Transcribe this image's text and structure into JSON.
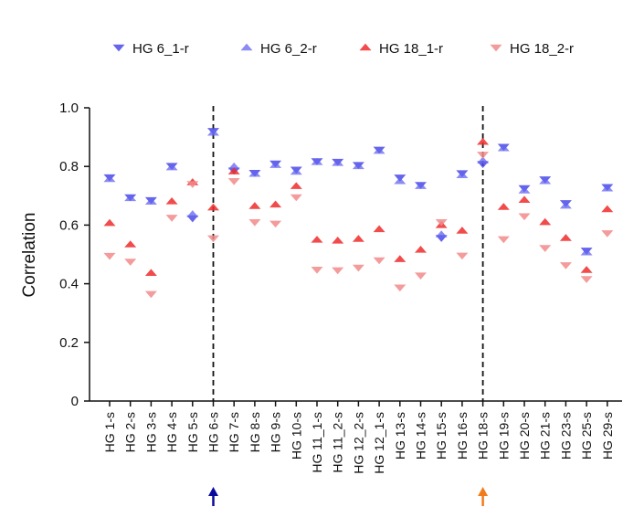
{
  "chart_data": {
    "type": "scatter",
    "title": "",
    "xlabel": "",
    "ylabel": "Correlation",
    "ylim": [
      0,
      1.0
    ],
    "yticks": [
      0,
      0.2,
      0.4,
      0.6,
      0.8,
      1.0
    ],
    "ytick_labels": [
      "0",
      "0.2",
      "0.4",
      "0.6",
      "0.8",
      "1.0"
    ],
    "grid": false,
    "legend_position": "top",
    "categories": [
      "HG 1-s",
      "HG 2-s",
      "HG 3-s",
      "HG 4-s",
      "HG 5-s",
      "HG 6-s",
      "HG 7-s",
      "HG 8-s",
      "HG 9-s",
      "HG 10-s",
      "HG 11_1-s",
      "HG 11_2-s",
      "HG 12_2-s",
      "HG 12_1-s",
      "HG 13-s",
      "HG 14-s",
      "HG 15-s",
      "HG 16-s",
      "HG 18-s",
      "HG 19-s",
      "HG 20-s",
      "HG 21-s",
      "HG 23-s",
      "HG 25-s",
      "HG 29-s"
    ],
    "series": [
      {
        "name": "HG 6_1-r",
        "marker": "triangle-down",
        "color": "#4a4ae8",
        "opacity": 0.85,
        "values": [
          0.763,
          0.695,
          0.685,
          0.802,
          0.623,
          0.921,
          0.786,
          0.778,
          0.81,
          0.789,
          0.818,
          0.816,
          0.805,
          0.857,
          0.762,
          0.737,
          0.556,
          0.777,
          0.808,
          0.867,
          0.726,
          0.756,
          0.675,
          0.513,
          0.73
        ]
      },
      {
        "name": "HG 6_2-r",
        "marker": "triangle-up",
        "color": "#6464f0",
        "opacity": 0.75,
        "values": [
          0.757,
          0.692,
          0.68,
          0.797,
          0.637,
          0.915,
          0.8,
          0.775,
          0.805,
          0.782,
          0.815,
          0.812,
          0.801,
          0.853,
          0.75,
          0.733,
          0.568,
          0.77,
          0.82,
          0.862,
          0.718,
          0.75,
          0.666,
          0.507,
          0.725
        ]
      },
      {
        "name": "HG 18_1-r",
        "marker": "triangle-up",
        "color": "#ee2c2c",
        "opacity": 0.85,
        "values": [
          0.607,
          0.534,
          0.437,
          0.681,
          0.746,
          0.66,
          0.783,
          0.665,
          0.67,
          0.733,
          0.55,
          0.547,
          0.553,
          0.586,
          0.484,
          0.516,
          0.6,
          0.581,
          0.884,
          0.662,
          0.686,
          0.61,
          0.556,
          0.447,
          0.654
        ]
      },
      {
        "name": "HG 18_2-r",
        "marker": "triangle-down",
        "color": "#f28a8a",
        "opacity": 0.85,
        "values": [
          0.495,
          0.475,
          0.365,
          0.625,
          0.74,
          0.555,
          0.75,
          0.61,
          0.605,
          0.695,
          0.448,
          0.446,
          0.455,
          0.48,
          0.387,
          0.428,
          0.61,
          0.496,
          0.84,
          0.552,
          0.63,
          0.522,
          0.463,
          0.416,
          0.572
        ]
      }
    ],
    "annotations": {
      "vertical_lines": [
        {
          "category": "HG 6-s",
          "style": "dashed",
          "color": "#111111"
        },
        {
          "category": "HG 18-s",
          "style": "dashed",
          "color": "#111111"
        }
      ],
      "arrows": [
        {
          "category": "HG 6-s",
          "color": "#0a0a9c",
          "direction": "up"
        },
        {
          "category": "HG 18-s",
          "color": "#f07c1c",
          "direction": "up"
        }
      ]
    }
  }
}
